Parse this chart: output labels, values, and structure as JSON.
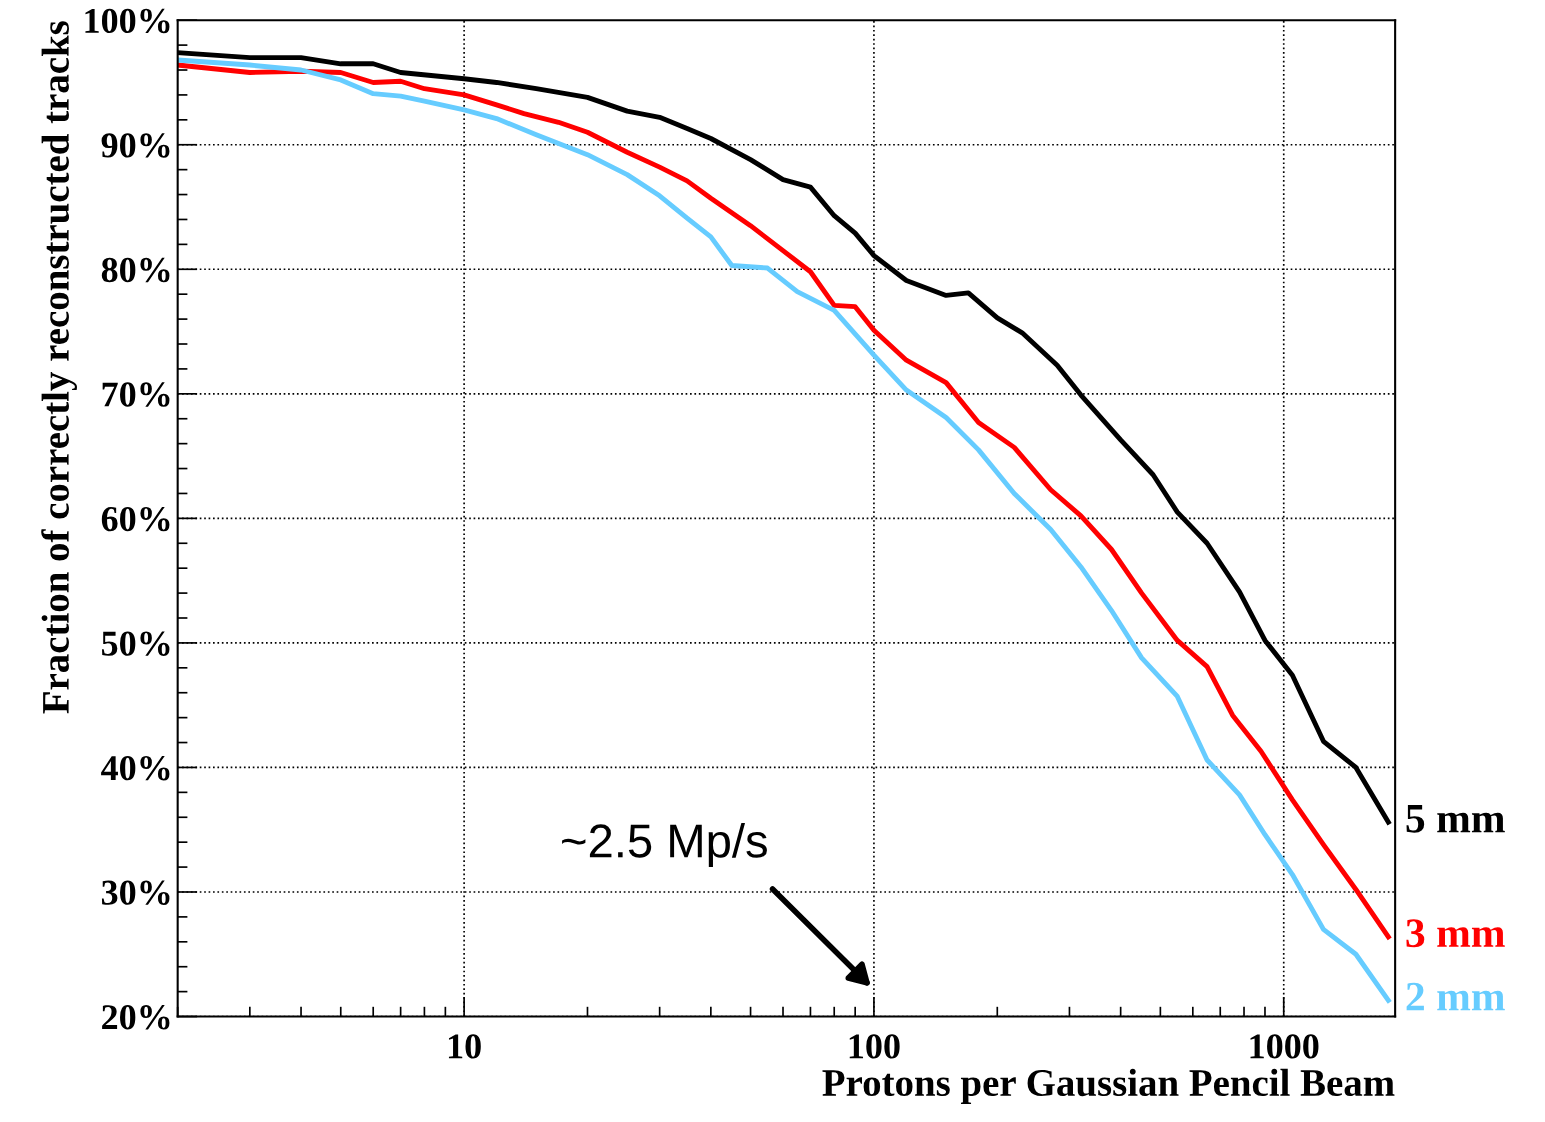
{
  "chart_data": {
    "type": "line",
    "xlabel": "Protons per Gaussian Pencil Beam",
    "ylabel": "Fraction of correctly reconstructed tracks",
    "log": "x",
    "xlim": [
      2,
      1870
    ],
    "xticks": [
      10,
      100,
      1000
    ],
    "ylim": [
      20,
      100
    ],
    "yticks": [
      {
        "value": 20,
        "label": "20%"
      },
      {
        "value": 30,
        "label": "30%"
      },
      {
        "value": 40,
        "label": "40%"
      },
      {
        "value": 50,
        "label": "50%"
      },
      {
        "value": 60,
        "label": "60%"
      },
      {
        "value": 70,
        "label": "70%"
      },
      {
        "value": 80,
        "label": "80%"
      },
      {
        "value": 90,
        "label": "90%"
      },
      {
        "value": 100,
        "label": "100%"
      }
    ],
    "grid": true,
    "legend": false,
    "marker": "none",
    "line_style": "solid",
    "annotations": [
      "~2.5 Mp/s"
    ],
    "series": [
      {
        "name": "5 mm",
        "color": "#000000",
        "x": [
          2,
          3,
          4,
          5,
          6,
          7,
          10,
          12,
          15,
          20,
          25,
          30,
          35,
          40,
          50,
          60,
          70,
          80,
          90,
          100,
          120,
          150,
          170,
          200,
          230,
          280,
          320,
          400,
          480,
          550,
          650,
          780,
          900,
          1050,
          1250,
          1500,
          1800
        ],
        "values": [
          97.4,
          97.0,
          97.0,
          96.5,
          96.5,
          95.8,
          95.3,
          95.0,
          94.5,
          93.8,
          92.7,
          92.2,
          91.3,
          90.5,
          88.8,
          87.2,
          86.6,
          84.3,
          82.9,
          81.1,
          79.1,
          77.9,
          78.1,
          76.1,
          74.9,
          72.3,
          69.9,
          66.3,
          63.5,
          60.5,
          58.0,
          54.1,
          50.2,
          47.4,
          42.1,
          40.0,
          35.6
        ]
      },
      {
        "name": "3 mm",
        "color": "#ff0000",
        "x": [
          2,
          3,
          4,
          5,
          6,
          7,
          8,
          10,
          12,
          14,
          17,
          20,
          25,
          30,
          35,
          40,
          50,
          60,
          70,
          80,
          90,
          100,
          120,
          150,
          180,
          220,
          270,
          320,
          380,
          450,
          550,
          650,
          750,
          880,
          1050,
          1250,
          1500,
          1800
        ],
        "values": [
          96.4,
          95.8,
          95.9,
          95.8,
          95.0,
          95.1,
          94.5,
          94.0,
          93.2,
          92.5,
          91.8,
          91.0,
          89.4,
          88.2,
          87.1,
          85.7,
          83.5,
          81.5,
          79.8,
          77.1,
          77.0,
          75.1,
          72.7,
          70.9,
          67.7,
          65.7,
          62.3,
          60.2,
          57.5,
          54.0,
          50.2,
          48.1,
          44.2,
          41.3,
          37.4,
          33.8,
          30.2,
          26.4
        ]
      },
      {
        "name": "2 mm",
        "color": "#66ccff",
        "x": [
          2,
          3,
          4,
          5,
          6,
          7,
          8,
          10,
          12,
          15,
          20,
          25,
          30,
          35,
          40,
          45,
          55,
          65,
          80,
          100,
          120,
          150,
          180,
          220,
          270,
          320,
          380,
          450,
          550,
          650,
          780,
          900,
          1050,
          1250,
          1500,
          1800
        ],
        "values": [
          96.8,
          96.4,
          96.0,
          95.2,
          94.1,
          93.9,
          93.5,
          92.8,
          92.1,
          90.8,
          89.2,
          87.6,
          85.9,
          84.1,
          82.6,
          80.3,
          80.1,
          78.2,
          76.7,
          73.1,
          70.3,
          68.1,
          65.5,
          62.0,
          59.1,
          56.1,
          52.6,
          48.8,
          45.7,
          40.6,
          37.8,
          34.6,
          31.4,
          27.0,
          25.0,
          21.3
        ]
      }
    ]
  }
}
